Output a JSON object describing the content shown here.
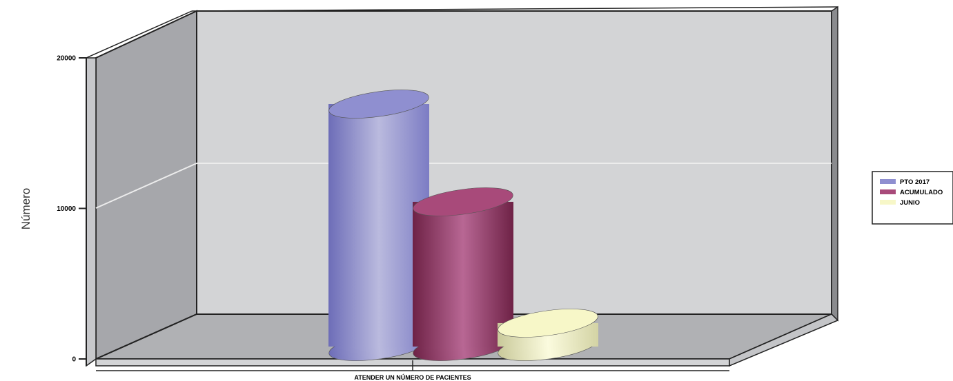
{
  "chart_data": {
    "type": "bar",
    "style": "3d-cylinder",
    "categories": [
      "ATENDER UN NÚMERO DE PACIENTES"
    ],
    "series": [
      {
        "name": "PTO 2017",
        "values": [
          15500
        ],
        "color": "#8f8fd0"
      },
      {
        "name": "ACUMULADO",
        "values": [
          9250
        ],
        "color": "#a84a7a"
      },
      {
        "name": "JUNIO",
        "values": [
          1500
        ],
        "color": "#f7f7c8"
      }
    ],
    "title": "",
    "xlabel": "",
    "ylabel": "Número",
    "ylim": [
      0,
      20000
    ],
    "yticks": [
      "0",
      "10000",
      "20000"
    ],
    "grid": true,
    "legend_position": "right"
  }
}
